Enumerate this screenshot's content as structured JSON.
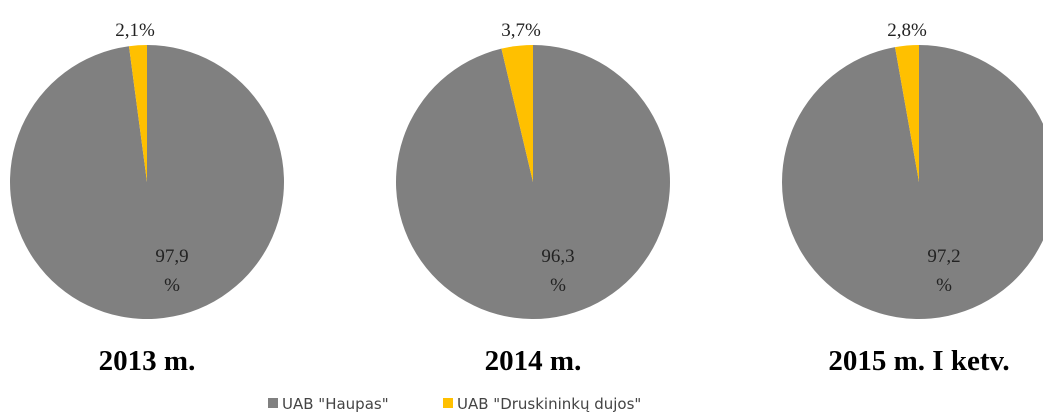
{
  "chart_data": [
    {
      "type": "pie",
      "title": "2013 m.",
      "categories": [
        "UAB \"Haupas\"",
        "UAB \"Druskininkų dujos\""
      ],
      "values": [
        97.9,
        2.1
      ],
      "value_labels": [
        "97,9 %",
        "2,1%"
      ],
      "colors": [
        "#808080",
        "#ffc000"
      ]
    },
    {
      "type": "pie",
      "title": "2014 m.",
      "categories": [
        "UAB \"Haupas\"",
        "UAB \"Druskininkų dujos\""
      ],
      "values": [
        96.3,
        3.7
      ],
      "value_labels": [
        "96,3 %",
        "3,7%"
      ],
      "colors": [
        "#808080",
        "#ffc000"
      ]
    },
    {
      "type": "pie",
      "title": "2015 m. I ketv.",
      "categories": [
        "UAB \"Haupas\"",
        "UAB \"Druskininkų dujos\""
      ],
      "values": [
        97.2,
        2.8
      ],
      "value_labels": [
        "97,2 %",
        "2,8%"
      ],
      "colors": [
        "#808080",
        "#ffc000"
      ]
    }
  ]
}
